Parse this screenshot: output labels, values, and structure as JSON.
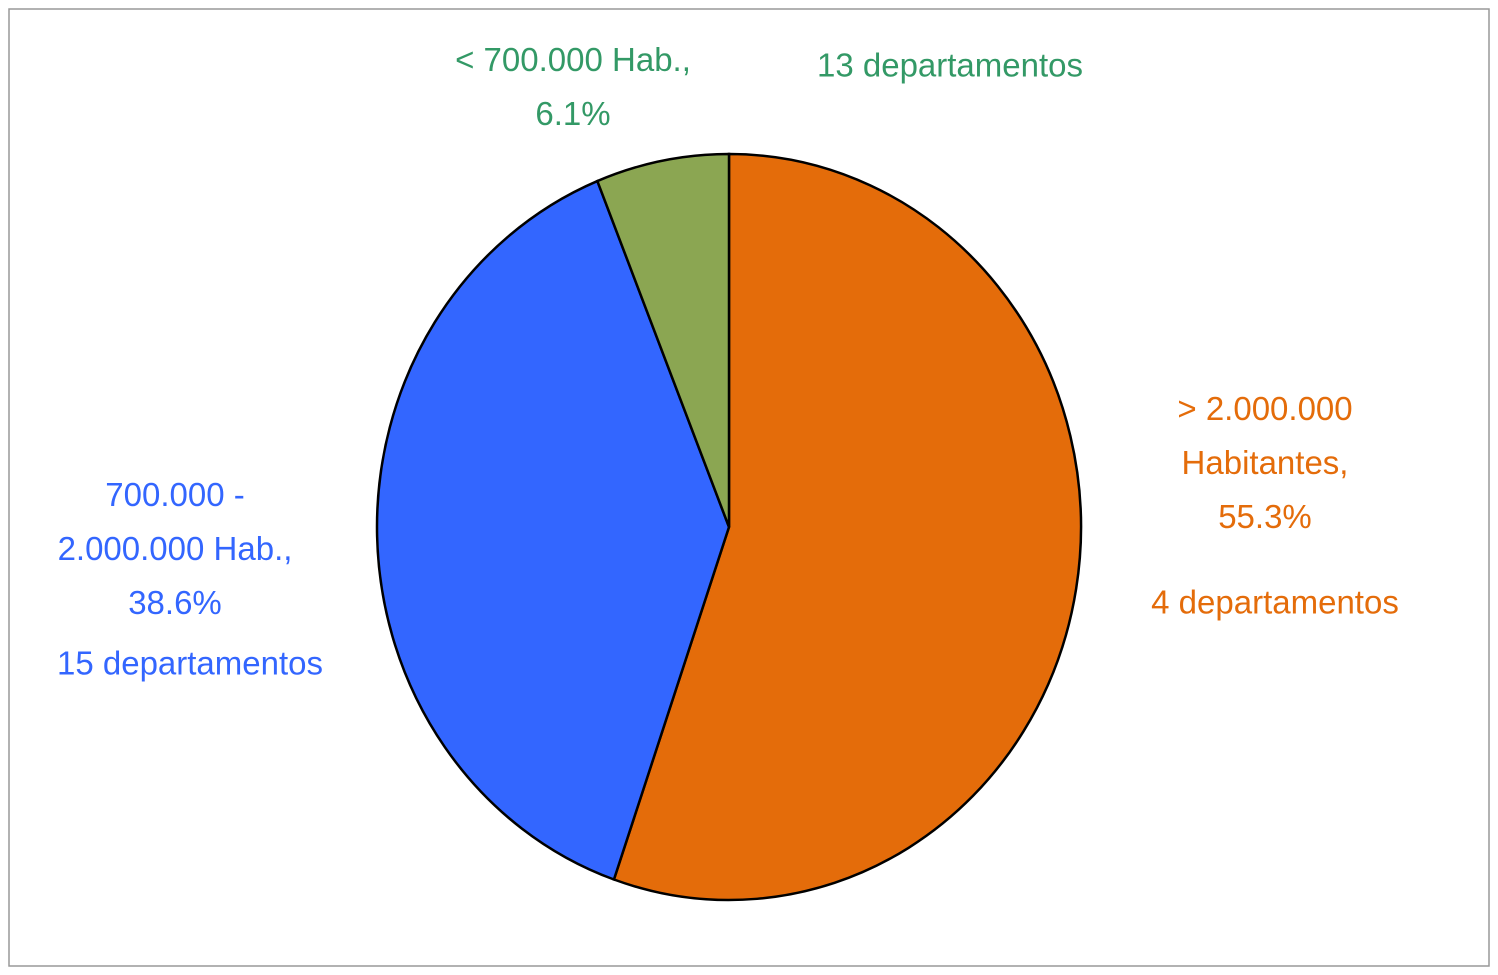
{
  "chart_data": {
    "type": "pie",
    "values": [
      55.3,
      38.6,
      6.1
    ],
    "value_labels": [
      "> 2.000.000\nHabitantes,\n55.3%",
      "700.000 -\n2.000.000 Hab.,\n38.6%",
      "< 700.000 Hab.,\n6.1%"
    ],
    "annotations": [
      "4 departamentos",
      "15 departamentos",
      "13 departamentos"
    ],
    "colors": [
      "#e46c0a",
      "#3366ff",
      "#8ba652"
    ],
    "label_colors": [
      "#e46c0a",
      "#3366ff",
      "#339966"
    ]
  }
}
